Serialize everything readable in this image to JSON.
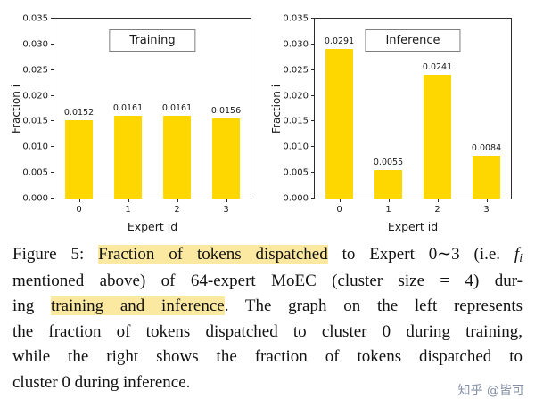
{
  "chart_data": [
    {
      "type": "bar",
      "title": "Training",
      "categories": [
        "0",
        "1",
        "2",
        "3"
      ],
      "values": [
        0.0152,
        0.0161,
        0.0161,
        0.0156
      ],
      "value_labels": [
        "0.0152",
        "0.0161",
        "0.0161",
        "0.0156"
      ],
      "xlabel": "Expert id",
      "ylabel": "Fraction i",
      "ylim": [
        0,
        0.035
      ],
      "yticks": [
        0,
        0.005,
        0.01,
        0.015,
        0.02,
        0.025,
        0.03,
        0.035
      ],
      "bar_color": "#FFD700",
      "grid": false,
      "legend_position": "top-center"
    },
    {
      "type": "bar",
      "title": "Inference",
      "categories": [
        "0",
        "1",
        "2",
        "3"
      ],
      "values": [
        0.0291,
        0.0055,
        0.0241,
        0.0084
      ],
      "value_labels": [
        "0.0291",
        "0.0055",
        "0.0241",
        "0.0084"
      ],
      "xlabel": "Expert id",
      "ylabel": "Fraction i",
      "ylim": [
        0,
        0.035
      ],
      "yticks": [
        0,
        0.005,
        0.01,
        0.015,
        0.02,
        0.025,
        0.03,
        0.035
      ],
      "bar_color": "#FFD700",
      "grid": false,
      "legend_position": "top-center"
    }
  ],
  "caption": {
    "lines": [
      [
        {
          "t": "Figure 5: "
        },
        {
          "t": "Fraction of tokens dispatched",
          "s": "hl"
        },
        {
          "t": " to Expert 0∼3 (i.e. "
        },
        {
          "t": "f",
          "s": "it"
        },
        {
          "t": "i",
          "s": "sub"
        }
      ],
      [
        {
          "t": "mentioned above) of 64-expert MoEC (cluster size = 4) dur-"
        }
      ],
      [
        {
          "t": "ing "
        },
        {
          "t": "training and inference",
          "s": "hl"
        },
        {
          "t": ". The graph on the left represents"
        }
      ],
      [
        {
          "t": "the fraction of tokens dispatched to cluster 0 during training,"
        }
      ],
      [
        {
          "t": "while the right shows the fraction of tokens dispatched to"
        }
      ],
      [
        {
          "t": "cluster 0 during inference."
        }
      ]
    ]
  },
  "watermark": {
    "text": "知乎 @皆可",
    "color": "#8590a6"
  },
  "colors": {
    "bar": "#FFD700",
    "highlight": "#fbe9a2",
    "axis": "#2b2b2b",
    "background": "#ffffff"
  }
}
